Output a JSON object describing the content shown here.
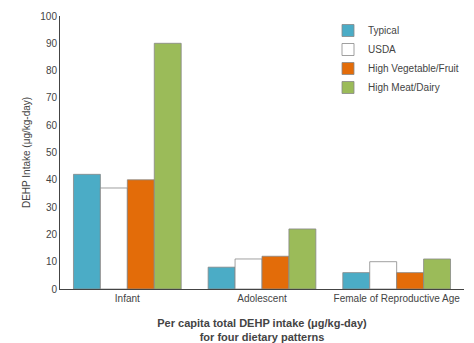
{
  "chart_data": {
    "type": "bar",
    "categories": [
      "Infant",
      "Adolescent",
      "Female of Reproductive Age"
    ],
    "series": [
      {
        "name": "Typical",
        "color": "#4BACC6",
        "values": [
          42,
          8,
          6
        ]
      },
      {
        "name": "USDA",
        "color": "#FFFFFF",
        "values": [
          37,
          11,
          10
        ]
      },
      {
        "name": "High Vegetable/Fruit",
        "color": "#E36C09",
        "values": [
          40,
          12,
          6
        ]
      },
      {
        "name": "High Meat/Dairy",
        "color": "#9BBB59",
        "values": [
          90,
          22,
          11
        ]
      }
    ],
    "ylabel": "DEHP Intake (μg/kg-day)",
    "xlabel": "Per capita total DEHP intake (μg/kg-day)\nfor four dietary patterns",
    "ylim": [
      0,
      100
    ],
    "yticks": [
      0,
      10,
      20,
      30,
      40,
      50,
      60,
      70,
      80,
      90,
      100
    ],
    "grid": false,
    "legend": "upper right"
  }
}
